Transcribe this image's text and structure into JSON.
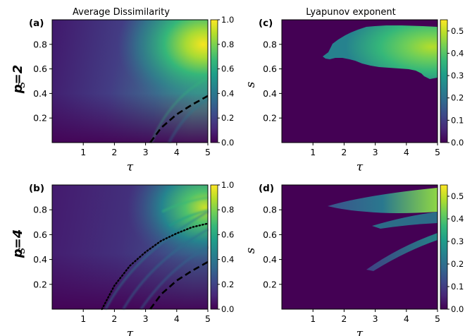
{
  "column_titles": [
    "Average Dissimilarity",
    "Lyapunov exponent"
  ],
  "row_labels": [
    "p=2",
    "p=4"
  ],
  "colormap": [
    "#440154",
    "#482878",
    "#3e4989",
    "#31688e",
    "#26828e",
    "#1f9e89",
    "#35b779",
    "#6ece58",
    "#b5de2b",
    "#fde725"
  ],
  "chart_data": [
    {
      "type": "heatmap",
      "panel_label": "(a)",
      "title": "Average Dissimilarity",
      "xlabel": "τ",
      "ylabel": "s",
      "xlim": [
        0,
        5
      ],
      "ylim": [
        0,
        1
      ],
      "xticks": [
        "1",
        "2",
        "3",
        "4",
        "5"
      ],
      "yticks": [
        "0.2",
        "0.4",
        "0.6",
        "0.8"
      ],
      "colorbar": {
        "range": [
          0.0,
          1.0
        ],
        "ticks": [
          "0.0",
          "0.2",
          "0.4",
          "0.6",
          "0.8",
          "1.0"
        ]
      },
      "curves": [
        {
          "style": "dashed",
          "points": [
            [
              3.15,
              0.0
            ],
            [
              3.5,
              0.12
            ],
            [
              4.0,
              0.23
            ],
            [
              4.5,
              0.31
            ],
            [
              5.0,
              0.38
            ]
          ]
        }
      ]
    },
    {
      "type": "heatmap",
      "panel_label": "(c)",
      "title": "Lyapunov exponent",
      "xlabel": "τ",
      "ylabel": "s",
      "xlim": [
        0,
        5
      ],
      "ylim": [
        0,
        1
      ],
      "xticks": [
        "1",
        "2",
        "3",
        "4",
        "5"
      ],
      "yticks": [
        "0.2",
        "0.4",
        "0.6",
        "0.8"
      ],
      "colorbar": {
        "range": [
          0.0,
          0.55
        ],
        "ticks": [
          "0.0",
          "0.1",
          "0.2",
          "0.3",
          "0.4",
          "0.5"
        ]
      },
      "curves": []
    },
    {
      "type": "heatmap",
      "panel_label": "(b)",
      "xlabel": "τ",
      "ylabel": "s",
      "xlim": [
        0,
        5
      ],
      "ylim": [
        0,
        1
      ],
      "xticks": [
        "1",
        "2",
        "3",
        "4",
        "5"
      ],
      "yticks": [
        "0.2",
        "0.4",
        "0.6",
        "0.8"
      ],
      "colorbar": {
        "range": [
          0.0,
          1.0
        ],
        "ticks": [
          "0.0",
          "0.2",
          "0.4",
          "0.6",
          "0.8",
          "1.0"
        ]
      },
      "curves": [
        {
          "style": "dotted",
          "points": [
            [
              1.6,
              0.0
            ],
            [
              2.0,
              0.19
            ],
            [
              2.5,
              0.35
            ],
            [
              3.0,
              0.46
            ],
            [
              3.5,
              0.55
            ],
            [
              4.0,
              0.61
            ],
            [
              4.5,
              0.66
            ],
            [
              5.0,
              0.69
            ]
          ]
        },
        {
          "style": "dashed",
          "points": [
            [
              3.15,
              0.0
            ],
            [
              3.5,
              0.12
            ],
            [
              4.0,
              0.23
            ],
            [
              4.5,
              0.31
            ],
            [
              5.0,
              0.38
            ]
          ]
        }
      ]
    },
    {
      "type": "heatmap",
      "panel_label": "(d)",
      "xlabel": "τ",
      "ylabel": "s",
      "xlim": [
        0,
        5
      ],
      "ylim": [
        0,
        1
      ],
      "xticks": [
        "1",
        "2",
        "3",
        "4",
        "5"
      ],
      "yticks": [
        "0.2",
        "0.4",
        "0.6",
        "0.8"
      ],
      "colorbar": {
        "range": [
          0.0,
          0.55
        ],
        "ticks": [
          "0.0",
          "0.1",
          "0.2",
          "0.3",
          "0.4",
          "0.5"
        ]
      },
      "curves": []
    }
  ]
}
